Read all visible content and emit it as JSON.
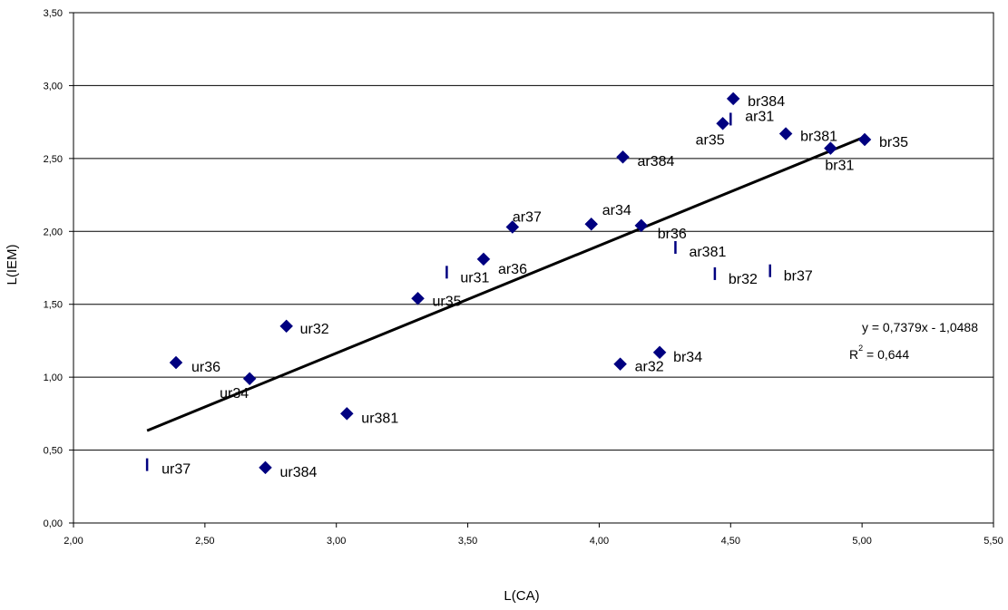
{
  "chart_data": {
    "type": "scatter",
    "xlabel": "L(CA)",
    "ylabel": "L(IEM)",
    "xlim": [
      2.0,
      5.5
    ],
    "ylim": [
      0.0,
      3.5
    ],
    "xticks": [
      2.0,
      2.5,
      3.0,
      3.5,
      4.0,
      4.5,
      5.0,
      5.5
    ],
    "xtick_labels": [
      "2,00",
      "2,50",
      "3,00",
      "3,50",
      "4,00",
      "4,50",
      "5,00",
      "5,50"
    ],
    "yticks": [
      0.0,
      0.5,
      1.0,
      1.5,
      2.0,
      2.5,
      3.0,
      3.5
    ],
    "ytick_labels": [
      "0,00",
      "0,50",
      "1,00",
      "1,50",
      "2,00",
      "2,50",
      "3,00",
      "3,50"
    ],
    "horizontal_grid": true,
    "marker_color": "#000080",
    "points": [
      {
        "label": "br384",
        "x": 4.51,
        "y": 2.91,
        "marker": "diamond"
      },
      {
        "label": "ar31",
        "x": 4.5,
        "y": 2.77,
        "marker": "dash"
      },
      {
        "label": "ar35",
        "x": 4.47,
        "y": 2.74,
        "marker": "diamond"
      },
      {
        "label": "br381",
        "x": 4.71,
        "y": 2.67,
        "marker": "diamond"
      },
      {
        "label": "br35",
        "x": 5.01,
        "y": 2.63,
        "marker": "diamond"
      },
      {
        "label": "br31",
        "x": 4.88,
        "y": 2.57,
        "marker": "diamond"
      },
      {
        "label": "ar384",
        "x": 4.09,
        "y": 2.51,
        "marker": "diamond"
      },
      {
        "label": "ar34",
        "x": 3.97,
        "y": 2.05,
        "marker": "diamond"
      },
      {
        "label": "br36",
        "x": 4.16,
        "y": 2.04,
        "marker": "diamond"
      },
      {
        "label": "ar37",
        "x": 3.67,
        "y": 2.03,
        "marker": "diamond"
      },
      {
        "label": "ar381",
        "x": 4.29,
        "y": 1.89,
        "marker": "dash"
      },
      {
        "label": "ar36",
        "x": 3.56,
        "y": 1.81,
        "marker": "diamond"
      },
      {
        "label": "ur31",
        "x": 3.42,
        "y": 1.72,
        "marker": "dash"
      },
      {
        "label": "br37",
        "x": 4.65,
        "y": 1.73,
        "marker": "dash"
      },
      {
        "label": "br32",
        "x": 4.44,
        "y": 1.71,
        "marker": "dash"
      },
      {
        "label": "ur35",
        "x": 3.31,
        "y": 1.54,
        "marker": "diamond"
      },
      {
        "label": "ur32",
        "x": 2.81,
        "y": 1.35,
        "marker": "diamond"
      },
      {
        "label": "br34",
        "x": 4.23,
        "y": 1.17,
        "marker": "diamond"
      },
      {
        "label": "ur36",
        "x": 2.39,
        "y": 1.1,
        "marker": "diamond"
      },
      {
        "label": "ar32",
        "x": 4.08,
        "y": 1.09,
        "marker": "diamond"
      },
      {
        "label": "ur34",
        "x": 2.67,
        "y": 0.99,
        "marker": "diamond"
      },
      {
        "label": "ur381",
        "x": 3.04,
        "y": 0.75,
        "marker": "diamond"
      },
      {
        "label": "ur37",
        "x": 2.28,
        "y": 0.4,
        "marker": "dash"
      },
      {
        "label": "ur384",
        "x": 2.73,
        "y": 0.38,
        "marker": "diamond"
      }
    ],
    "trendline": {
      "slope": 0.7379,
      "intercept": -1.0488,
      "x_range": [
        2.28,
        5.01
      ],
      "equation": "y = 0,7379x - 1,0488",
      "r2_prefix": "R",
      "r2_exponent": "2",
      "r2_value": " = 0,644"
    }
  }
}
